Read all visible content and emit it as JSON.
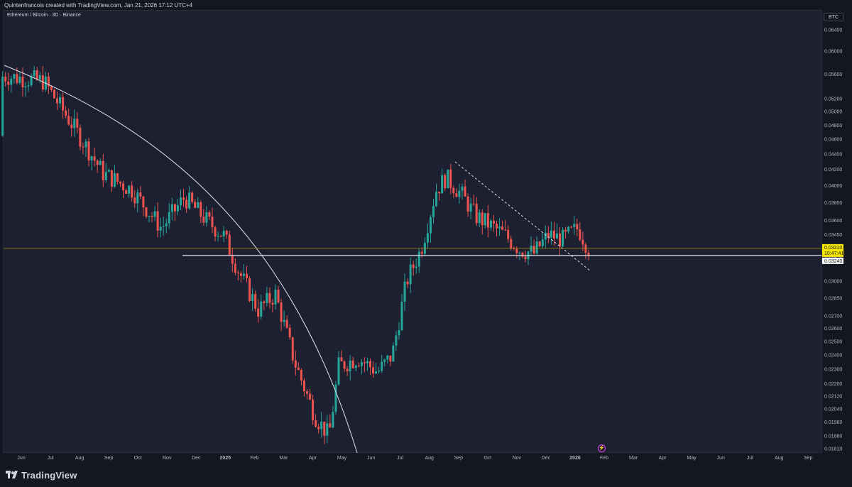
{
  "header": {
    "attribution": "Quintenfrancois created with TradingView.com, Jan 21, 2026 17:12 UTC+4"
  },
  "legend": {
    "title": "Ethereum / Bitcoin · 3D · Binance"
  },
  "currency": "BTC",
  "footer": {
    "brand": "TradingView"
  },
  "colors": {
    "up": "#26a69a",
    "down": "#ef5350",
    "background": "#1c2030",
    "price_label": "#f7e600"
  },
  "chart_data": {
    "type": "candlestick",
    "y_scale": "log",
    "ylim": [
      0.0179,
      0.0678
    ],
    "y_ticks": [
      "0.06400",
      "0.06000",
      "0.05600",
      "0.05200",
      "0.05000",
      "0.04800",
      "0.04600",
      "0.04400",
      "0.04200",
      "0.04000",
      "0.03800",
      "0.03600",
      "0.03450",
      "0.03310",
      "0.03240",
      "0.03000",
      "0.02850",
      "0.02700",
      "0.02600",
      "0.02500",
      "0.02400",
      "0.02300",
      "0.02200",
      "0.02120",
      "0.02040",
      "0.01960",
      "0.01880",
      "0.01810"
    ],
    "x_ticks": [
      "Jun",
      "Jul",
      "Aug",
      "Sep",
      "Oct",
      "Nov",
      "Dec",
      "2025",
      "Feb",
      "Mar",
      "Apr",
      "May",
      "Jun",
      "Jul",
      "Aug",
      "Sep",
      "Oct",
      "Nov",
      "Dec",
      "2026",
      "Feb",
      "Mar",
      "Apr",
      "May",
      "Jun",
      "Jul",
      "Aug",
      "Sep"
    ],
    "price_labels": {
      "last": "0.03310",
      "countdown": "10:47:41",
      "support": "0.03240"
    },
    "support_level": 0.0324,
    "key_points": [
      {
        "x": "2024-05-25",
        "close": 0.0556
      },
      {
        "x": "2024-07-01",
        "close": 0.0548
      },
      {
        "x": "2024-08-01",
        "close": 0.0478
      },
      {
        "x": "2024-09-01",
        "close": 0.0415
      },
      {
        "x": "2024-10-01",
        "close": 0.0395
      },
      {
        "x": "2024-11-01",
        "close": 0.0352
      },
      {
        "x": "2024-11-25",
        "close": 0.0386
      },
      {
        "x": "2024-12-20",
        "close": 0.0358
      },
      {
        "x": "2025-01-05",
        "close": 0.0344
      },
      {
        "x": "2025-01-20",
        "close": 0.031
      },
      {
        "x": "2025-02-10",
        "close": 0.0275
      },
      {
        "x": "2025-02-28",
        "close": 0.0288
      },
      {
        "x": "2025-03-20",
        "close": 0.0235
      },
      {
        "x": "2025-04-10",
        "close": 0.02
      },
      {
        "x": "2025-04-25",
        "close": 0.0188
      },
      {
        "x": "2025-05-05",
        "close": 0.0232
      },
      {
        "x": "2025-05-25",
        "close": 0.0238
      },
      {
        "x": "2025-06-15",
        "close": 0.0228
      },
      {
        "x": "2025-06-30",
        "close": 0.024
      },
      {
        "x": "2025-07-15",
        "close": 0.03
      },
      {
        "x": "2025-07-30",
        "close": 0.033
      },
      {
        "x": "2025-08-15",
        "close": 0.0395
      },
      {
        "x": "2025-08-25",
        "close": 0.041
      },
      {
        "x": "2025-09-10",
        "close": 0.039
      },
      {
        "x": "2025-09-25",
        "close": 0.0365
      },
      {
        "x": "2025-10-10",
        "close": 0.0355
      },
      {
        "x": "2025-10-25",
        "close": 0.0345
      },
      {
        "x": "2025-11-10",
        "close": 0.033
      },
      {
        "x": "2025-11-25",
        "close": 0.0326
      },
      {
        "x": "2025-12-10",
        "close": 0.0345
      },
      {
        "x": "2025-12-25",
        "close": 0.034
      },
      {
        "x": "2026-01-10",
        "close": 0.0352
      },
      {
        "x": "2026-01-21",
        "close": 0.0331
      }
    ]
  }
}
